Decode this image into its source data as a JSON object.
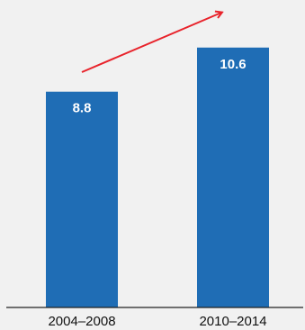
{
  "chart_data": {
    "type": "bar",
    "categories": [
      "2004–2008",
      "2010–2014"
    ],
    "values": [
      8.8,
      10.6
    ],
    "data_labels": [
      "8.8",
      "10.6"
    ],
    "title": "",
    "xlabel": "",
    "ylabel": "",
    "ylim": [
      0,
      11.4
    ],
    "grid": false,
    "legend": "none",
    "annotation": "upward trend arrow",
    "colors": {
      "bar": "#1f6db5",
      "arrow": "#e8232b",
      "background": "#f1f1f1",
      "axis": "#222222"
    }
  }
}
